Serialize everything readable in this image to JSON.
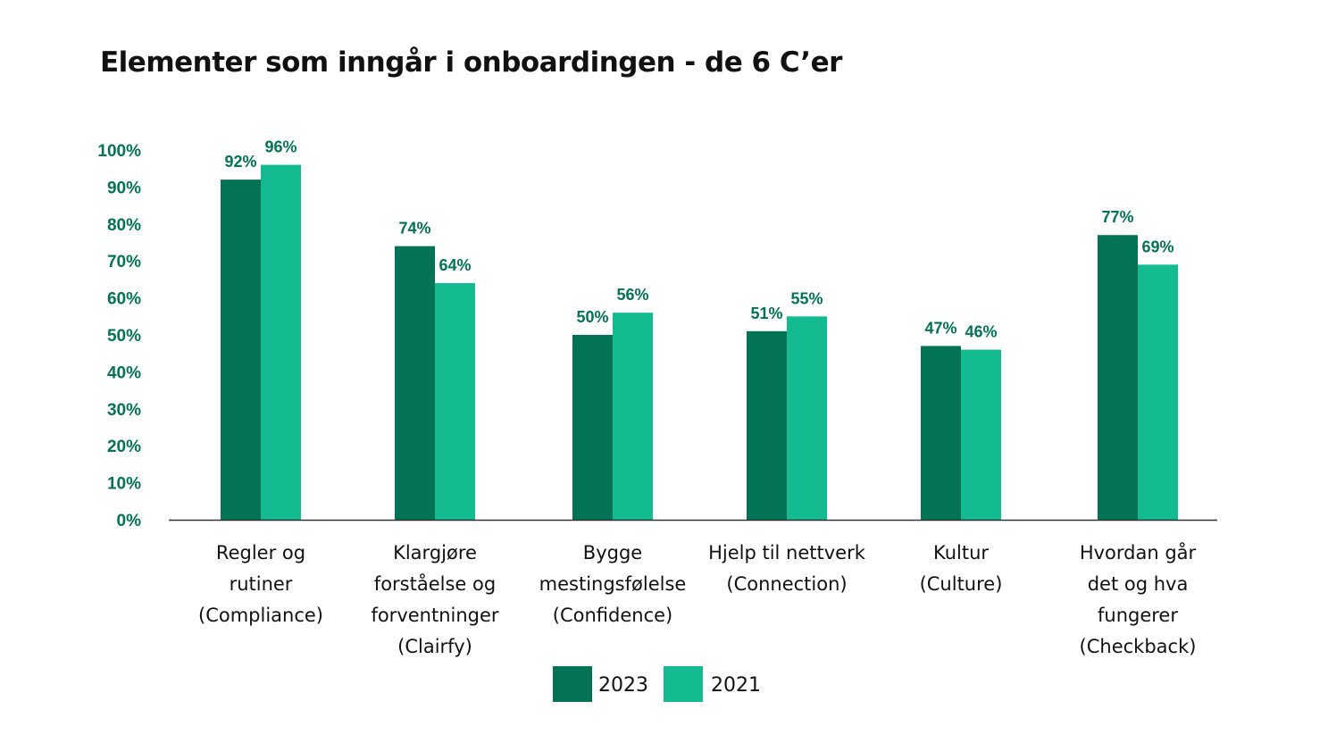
{
  "title": "Elementer som inngår i onboardingen - de 6 C’er",
  "colors": {
    "series_2023": "#037356",
    "series_2021": "#14bb90",
    "axis_label": "#037356",
    "baseline": "#333333",
    "text": "#111111"
  },
  "chart_data": {
    "type": "bar",
    "title": "Elementer som inngår i onboardingen - de 6 C’er",
    "categories": [
      [
        "Regler og",
        "rutiner",
        "(Compliance)"
      ],
      [
        "Klargjøre",
        "forståelse og",
        "forventninger",
        "(Clairfy)"
      ],
      [
        "Bygge",
        "mestingsfølelse",
        "(Confidence)"
      ],
      [
        "Hjelp til nettverk",
        "(Connection)"
      ],
      [
        "Kultur",
        "(Culture)"
      ],
      [
        "Hvordan går",
        "det og hva",
        "fungerer",
        "(Checkback)"
      ]
    ],
    "series": [
      {
        "name": "2023",
        "values": [
          92,
          74,
          50,
          51,
          47,
          77
        ],
        "labels": [
          "92%",
          "74%",
          "50%",
          "51%",
          "47%",
          "77%"
        ]
      },
      {
        "name": "2021",
        "values": [
          96,
          64,
          56,
          55,
          46,
          69
        ],
        "labels": [
          "96%",
          "64%",
          "56%",
          "55%",
          "46%",
          "69%"
        ]
      }
    ],
    "ylim": [
      0,
      100
    ],
    "yticks": [
      0,
      10,
      20,
      30,
      40,
      50,
      60,
      70,
      80,
      90,
      100
    ],
    "ytick_labels": [
      "0%",
      "10%",
      "20%",
      "30%",
      "40%",
      "50%",
      "60%",
      "70%",
      "80%",
      "90%",
      "100%"
    ],
    "xlabel": "",
    "ylabel": "",
    "grid": false,
    "legend": "bottom-center"
  }
}
